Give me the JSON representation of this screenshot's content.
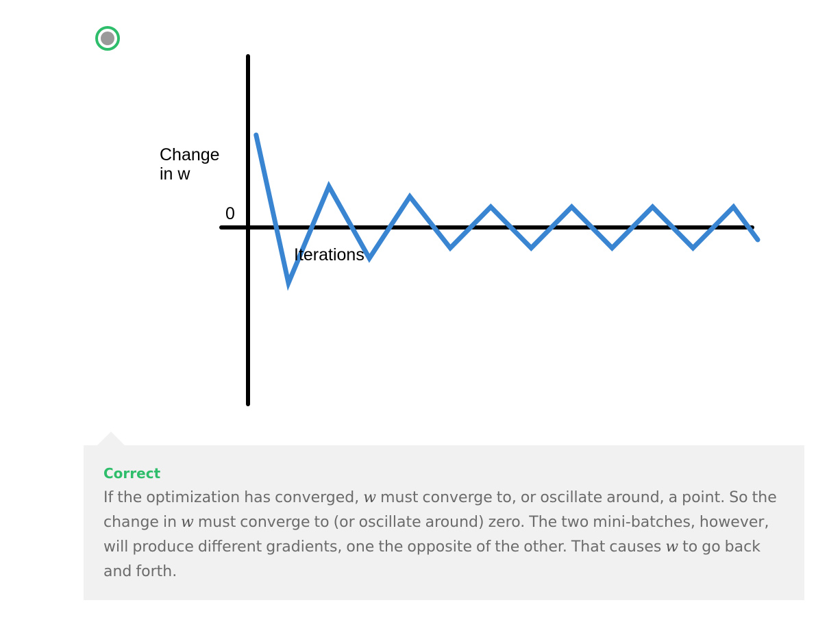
{
  "option": {
    "selected": true,
    "state": "correct"
  },
  "figure": {
    "ylabel_line1": "Change",
    "ylabel_line2": "in w",
    "zero_label": "0",
    "xlabel": "Iterations",
    "line_color": "#3a85d1",
    "axis_color": "#000000"
  },
  "chart_data": {
    "type": "line",
    "title": "",
    "xlabel": "Iterations",
    "ylabel": "Change in w",
    "series": [
      {
        "values": [
          225,
          -135,
          100,
          -75,
          75,
          -50,
          50,
          -50,
          50,
          -50,
          50,
          -50,
          50,
          -30
        ]
      }
    ],
    "x_vertices": [
      1,
      5,
      10,
      15,
      20,
      25,
      30,
      35,
      40,
      45,
      50,
      55,
      60,
      63
    ],
    "zero_line": 0,
    "grid": false
  },
  "feedback": {
    "status": "Correct",
    "seg1": "If the optimization has converged, ",
    "w1": "w",
    "seg2": " must converge to, or oscillate around, a point. So the change in ",
    "w2": "w",
    "seg3": " must converge to (or oscillate around) zero. The two mini-batches, however, will produce different gradients, one the opposite of the other. That causes ",
    "w3": "w",
    "seg4": " to go back and forth.",
    "colors": {
      "status": "#2ebd6b",
      "text": "#6b6b6b",
      "background": "#f1f1f1"
    }
  },
  "radio_colors": {
    "ring": "#2ebd6b",
    "dot": "#9a9a9a"
  }
}
